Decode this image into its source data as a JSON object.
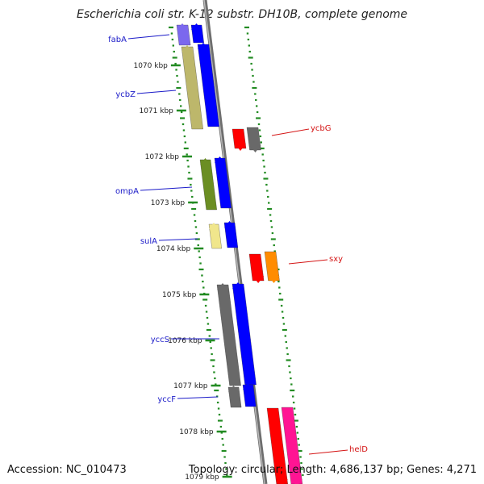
{
  "title": "Escherichia coli str. K-12 substr. DH10B, complete genome",
  "footer": {
    "accession": "Accession: NC_010473",
    "topology": "Topology: circular; Length: 4,686,137 bp; Genes: 4,271"
  },
  "colors": {
    "left_labels": "#1a1ac8",
    "right_labels": "#d41414",
    "ticks": "#228b22",
    "backbone": "#8a8a8a"
  },
  "scale_labels": [
    "1070 kbp",
    "1071 kbp",
    "1072 kbp",
    "1073 kbp",
    "1074 kbp",
    "1075 kbp",
    "1076 kbp",
    "1077 kbp",
    "1078 kbp",
    "1079 kbp"
  ],
  "genes_left": [
    "fabA",
    "ycbZ",
    "ompA",
    "sulA",
    "yccS",
    "yccF"
  ],
  "genes_right": [
    "ycbG",
    "sxy",
    "helD"
  ],
  "features": [
    {
      "gene": "fabA",
      "strand": "-",
      "color": "#7b68ee"
    },
    {
      "gene": "fabA",
      "strand": "-",
      "color": "#0000ff"
    },
    {
      "gene": "ycbZ",
      "strand": "-",
      "color": "#bdb76b"
    },
    {
      "gene": "ycbZ",
      "strand": "-",
      "color": "#0000ff"
    },
    {
      "gene": "ompA",
      "strand": "-",
      "color": "#6b8e23"
    },
    {
      "gene": "ompA",
      "strand": "-",
      "color": "#0000ff"
    },
    {
      "gene": "sulA",
      "strand": "-",
      "color": "#f0e68c"
    },
    {
      "gene": "sulA",
      "strand": "-",
      "color": "#0000ff"
    },
    {
      "gene": "yccS",
      "strand": "-",
      "color": "#696969"
    },
    {
      "gene": "yccS",
      "strand": "-",
      "color": "#0000ff"
    },
    {
      "gene": "yccF",
      "strand": "-",
      "color": "#696969"
    },
    {
      "gene": "yccF",
      "strand": "-",
      "color": "#0000ff"
    },
    {
      "gene": "ycbG",
      "strand": "+",
      "color": "#ff0000"
    },
    {
      "gene": "ycbG",
      "strand": "+",
      "color": "#696969"
    },
    {
      "gene": "sxy",
      "strand": "+",
      "color": "#ff0000"
    },
    {
      "gene": "sxy",
      "strand": "+",
      "color": "#ff8c00"
    },
    {
      "gene": "helD",
      "strand": "+",
      "color": "#ff0000"
    },
    {
      "gene": "helD",
      "strand": "+",
      "color": "#ff1493"
    }
  ]
}
